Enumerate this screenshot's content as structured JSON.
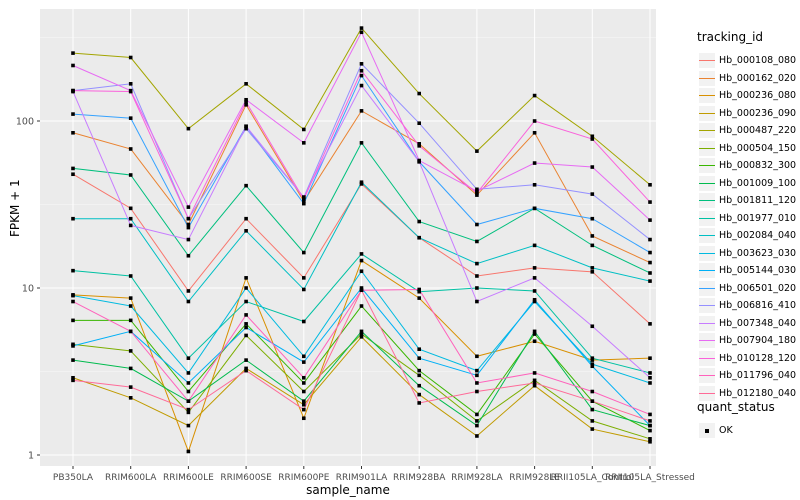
{
  "figure": {
    "y_axis_title": "FPKM + 1",
    "x_axis_title": "sample_name",
    "legend_title": "tracking_id",
    "quant_legend_title": "quant_status",
    "quant_ok_label": "OK",
    "colors": {
      "panel_bg": "#EBEBEB",
      "grid_major": "#FFFFFF",
      "grid_minor": "#F5F5F5",
      "tick_text": "#4D4D4D",
      "tick_mark": "#333333",
      "point": "#000000",
      "legend_key_bg": "#F2F2F2"
    }
  },
  "chart_data": {
    "type": "line",
    "title": "",
    "xlabel": "sample_name",
    "ylabel": "FPKM + 1",
    "y_scale": "log10",
    "y_ticks": [
      1,
      10,
      100
    ],
    "y_minor_ticks": [
      3.162,
      31.62,
      316.2
    ],
    "ylim": [
      1,
      400
    ],
    "grid": true,
    "legend_position": "right",
    "point_marker": "filled-black-square",
    "quant_status_all_points": "OK",
    "categories": [
      "PB350LA",
      "RRIM600LA",
      "RRIM600LE",
      "RRIM600SE",
      "RRIM600PE",
      "RRIM901LA",
      "RRIM928BA",
      "RRIM928LA",
      "RRIM928LE",
      "RRII105LA_Control",
      "RRII105LA_Stressed"
    ],
    "series": [
      {
        "name": "Hb_000108_080",
        "color": "#F8766D",
        "values": [
          48,
          30,
          9.6,
          26,
          11.5,
          42,
          20,
          11.8,
          13.2,
          12.5,
          6.1
        ]
      },
      {
        "name": "Hb_000162_020",
        "color": "#EA8331",
        "values": [
          85,
          68,
          24,
          125,
          33,
          115,
          73,
          36,
          85,
          20.5,
          14.2
        ]
      },
      {
        "name": "Hb_000236_080",
        "color": "#D89000",
        "values": [
          9.1,
          8.7,
          1.05,
          11.5,
          1.66,
          14.6,
          8.7,
          3.9,
          4.8,
          3.7,
          3.8
        ]
      },
      {
        "name": "Hb_000236_090",
        "color": "#C09B00",
        "values": [
          2.9,
          2.2,
          1.5,
          3.3,
          2.0,
          5.1,
          2.3,
          1.3,
          2.6,
          1.43,
          1.2
        ]
      },
      {
        "name": "Hb_000487_220",
        "color": "#A3A500",
        "values": [
          255,
          240,
          90,
          167,
          89,
          360,
          146,
          66,
          142,
          81,
          41.5
        ]
      },
      {
        "name": "Hb_000504_150",
        "color": "#7CAE00",
        "values": [
          4.6,
          4.2,
          1.8,
          5.2,
          2.4,
          5.3,
          3.0,
          1.6,
          2.8,
          1.6,
          1.25
        ]
      },
      {
        "name": "Hb_000832_300",
        "color": "#39B600",
        "values": [
          6.4,
          6.4,
          2.4,
          6.1,
          2.7,
          7.8,
          3.2,
          1.75,
          5.3,
          2.1,
          1.4
        ]
      },
      {
        "name": "Hb_001009_100",
        "color": "#00BB4E",
        "values": [
          3.7,
          3.3,
          2.1,
          3.7,
          2.1,
          5.5,
          2.6,
          1.5,
          5.5,
          1.87,
          1.5
        ]
      },
      {
        "name": "Hb_001811_120",
        "color": "#00BF7D",
        "values": [
          52,
          47.5,
          15.6,
          41,
          16.3,
          74,
          25,
          19,
          30,
          18,
          12.3
        ]
      },
      {
        "name": "Hb_001977_010",
        "color": "#00C1A3",
        "values": [
          12.7,
          11.8,
          3.8,
          8.3,
          6.3,
          16,
          9.5,
          10,
          9.6,
          3.8,
          3.1
        ]
      },
      {
        "name": "Hb_002084_040",
        "color": "#00BFC4",
        "values": [
          26,
          26,
          8.3,
          22,
          9.8,
          43,
          20,
          14,
          18,
          13.2,
          11
        ]
      },
      {
        "name": "Hb_003623_030",
        "color": "#00BAE0",
        "values": [
          9.0,
          7.8,
          3.1,
          10,
          3.9,
          12.6,
          4.3,
          3.2,
          8.3,
          3.5,
          2.7
        ]
      },
      {
        "name": "Hb_005144_030",
        "color": "#00B0F6",
        "values": [
          4.5,
          5.5,
          2.7,
          5.8,
          3.6,
          10,
          3.8,
          3.0,
          8.5,
          3.4,
          1.5
        ]
      },
      {
        "name": "Hb_006501_020",
        "color": "#35A2FF",
        "values": [
          110,
          104,
          23,
          93,
          32,
          187,
          57,
          24,
          30,
          26,
          16.3
        ]
      },
      {
        "name": "Hb_006816_410",
        "color": "#9590FF",
        "values": [
          152,
          167,
          26,
          90,
          35,
          220,
          97,
          39,
          41.5,
          36.5,
          19.5
        ]
      },
      {
        "name": "Hb_007348_040",
        "color": "#C77CFF",
        "values": [
          150,
          23.7,
          19.5,
          93,
          35,
          163,
          57,
          8.3,
          11.5,
          5.9,
          2.9
        ]
      },
      {
        "name": "Hb_007904_180",
        "color": "#E76BF3",
        "values": [
          215,
          152,
          30.5,
          134,
          74,
          340,
          58,
          38,
          56,
          53,
          25.5
        ]
      },
      {
        "name": "Hb_010128_120",
        "color": "#FA62DB",
        "values": [
          152,
          150,
          26,
          130,
          34,
          200,
          71,
          37,
          100,
          78,
          32.7
        ]
      },
      {
        "name": "Hb_011796_040",
        "color": "#FF62BC",
        "values": [
          8.3,
          5.5,
          2.1,
          6.9,
          2.9,
          9.7,
          9.8,
          2.7,
          3.1,
          2.4,
          1.75
        ]
      },
      {
        "name": "Hb_012180_040",
        "color": "#FF6A98",
        "values": [
          2.8,
          2.55,
          1.87,
          3.2,
          1.87,
          9.7,
          2.05,
          2.4,
          2.7,
          2.1,
          1.6
        ]
      }
    ]
  }
}
